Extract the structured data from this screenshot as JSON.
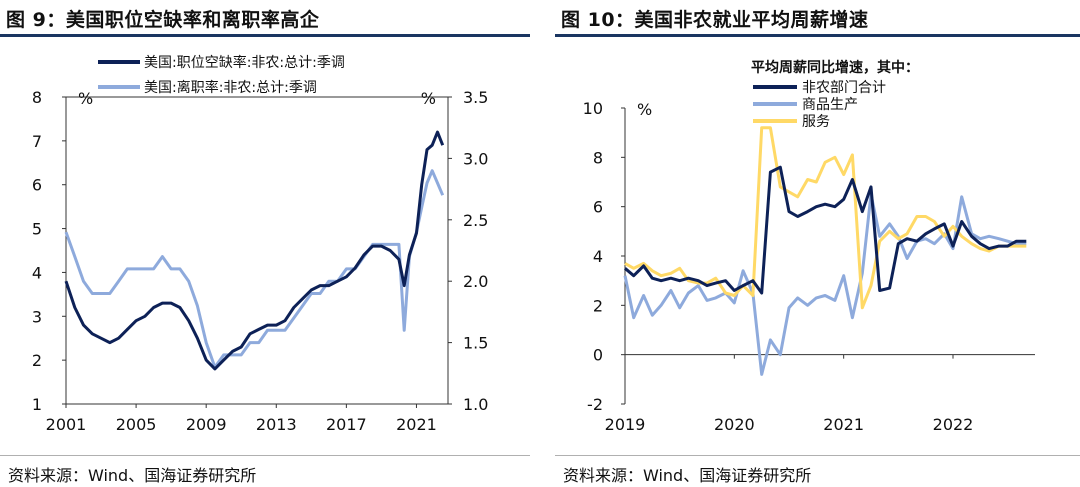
{
  "figures": {
    "left": {
      "title": "图 9：美国职位空缺率和离职率高企",
      "source": "资料来源：Wind、国海证券研究所"
    },
    "right": {
      "title": "图 10：美国非农就业平均周薪增速",
      "source": "资料来源：Wind、国海证券研究所"
    }
  },
  "chart_data": [
    {
      "type": "line",
      "title": "图 9：美国职位空缺率和离职率高企",
      "xlabel": "",
      "ylabel": "%",
      "y2label": "%",
      "xlim": [
        2001.0,
        2022.8
      ],
      "ylim": [
        1,
        8
      ],
      "y2lim": [
        1.0,
        3.5
      ],
      "x_ticks": [
        "2001",
        "2005",
        "2009",
        "2013",
        "2017",
        "2021"
      ],
      "y_ticks": [
        "1",
        "2",
        "3",
        "4",
        "5",
        "6",
        "7",
        "8"
      ],
      "y2_ticks": [
        "1.0",
        "1.5",
        "2.0",
        "2.5",
        "3.0",
        "3.5"
      ],
      "legend_position": "top",
      "colors": {
        "openings": "#0d2157",
        "quits": "#8eaadc"
      },
      "series": [
        {
          "name": "美国:职位空缺率:非农:总计:季调",
          "axis": "left",
          "x": [
            2001.0,
            2001.5,
            2002.0,
            2002.5,
            2003.0,
            2003.5,
            2004.0,
            2004.5,
            2005.0,
            2005.5,
            2006.0,
            2006.5,
            2007.0,
            2007.5,
            2008.0,
            2008.5,
            2009.0,
            2009.5,
            2010.0,
            2010.5,
            2011.0,
            2011.5,
            2012.0,
            2012.5,
            2013.0,
            2013.5,
            2014.0,
            2014.5,
            2015.0,
            2015.5,
            2016.0,
            2016.5,
            2017.0,
            2017.5,
            2018.0,
            2018.5,
            2019.0,
            2019.5,
            2020.0,
            2020.3,
            2020.6,
            2021.0,
            2021.3,
            2021.6,
            2021.9,
            2022.2,
            2022.5
          ],
          "values": [
            3.8,
            3.2,
            2.8,
            2.6,
            2.5,
            2.4,
            2.5,
            2.7,
            2.9,
            3.0,
            3.2,
            3.3,
            3.3,
            3.2,
            2.9,
            2.5,
            2.0,
            1.8,
            2.0,
            2.2,
            2.3,
            2.6,
            2.7,
            2.8,
            2.8,
            2.9,
            3.2,
            3.4,
            3.6,
            3.7,
            3.7,
            3.8,
            3.9,
            4.1,
            4.4,
            4.6,
            4.6,
            4.5,
            4.3,
            3.7,
            4.4,
            4.9,
            6.0,
            6.8,
            6.9,
            7.2,
            6.9
          ]
        },
        {
          "name": "美国:离职率:非农:总计:季调",
          "axis": "right",
          "x": [
            2001.0,
            2001.5,
            2002.0,
            2002.5,
            2003.0,
            2003.5,
            2004.0,
            2004.5,
            2005.0,
            2005.5,
            2006.0,
            2006.5,
            2007.0,
            2007.5,
            2008.0,
            2008.5,
            2009.0,
            2009.5,
            2010.0,
            2010.5,
            2011.0,
            2011.5,
            2012.0,
            2012.5,
            2013.0,
            2013.5,
            2014.0,
            2014.5,
            2015.0,
            2015.5,
            2016.0,
            2016.5,
            2017.0,
            2017.5,
            2018.0,
            2018.5,
            2019.0,
            2019.5,
            2020.0,
            2020.3,
            2020.6,
            2021.0,
            2021.3,
            2021.6,
            2021.9,
            2022.2,
            2022.5
          ],
          "values": [
            2.4,
            2.2,
            2.0,
            1.9,
            1.9,
            1.9,
            2.0,
            2.1,
            2.1,
            2.1,
            2.1,
            2.2,
            2.1,
            2.1,
            2.0,
            1.8,
            1.5,
            1.3,
            1.4,
            1.4,
            1.4,
            1.5,
            1.5,
            1.6,
            1.6,
            1.6,
            1.7,
            1.8,
            1.9,
            1.9,
            2.0,
            2.0,
            2.1,
            2.1,
            2.2,
            2.3,
            2.3,
            2.3,
            2.3,
            1.6,
            2.2,
            2.4,
            2.6,
            2.8,
            2.9,
            2.8,
            2.7
          ]
        }
      ]
    },
    {
      "type": "line",
      "title": "图 10：美国非农就业平均周薪增速",
      "xlabel": "",
      "ylabel": "%",
      "xlim": [
        2019.0,
        2022.75
      ],
      "ylim": [
        -2,
        10
      ],
      "x_ticks": [
        "2019",
        "2020",
        "2021",
        "2022"
      ],
      "y_ticks": [
        "-2",
        "0",
        "2",
        "4",
        "6",
        "8",
        "10"
      ],
      "legend_title": "平均周薪同比增速，其中：",
      "legend_position": "top-left",
      "colors": {
        "nonfarm": "#0d2157",
        "goods": "#8eaadc",
        "services": "#ffd966"
      },
      "series": [
        {
          "name": "非农部门合计",
          "x": [
            2019.0,
            2019.08,
            2019.17,
            2019.25,
            2019.33,
            2019.42,
            2019.5,
            2019.58,
            2019.67,
            2019.75,
            2019.83,
            2019.92,
            2020.0,
            2020.08,
            2020.17,
            2020.25,
            2020.33,
            2020.42,
            2020.5,
            2020.58,
            2020.67,
            2020.75,
            2020.83,
            2020.92,
            2021.0,
            2021.08,
            2021.17,
            2021.25,
            2021.33,
            2021.42,
            2021.5,
            2021.58,
            2021.67,
            2021.75,
            2021.83,
            2021.92,
            2022.0,
            2022.08,
            2022.17,
            2022.25,
            2022.33,
            2022.42,
            2022.5,
            2022.58,
            2022.67
          ],
          "values": [
            3.5,
            3.2,
            3.6,
            3.1,
            3.0,
            3.1,
            3.0,
            3.1,
            3.0,
            2.8,
            2.9,
            3.0,
            2.6,
            2.8,
            3.0,
            2.5,
            7.4,
            7.6,
            5.8,
            5.6,
            5.8,
            6.0,
            6.1,
            6.0,
            6.3,
            7.1,
            5.8,
            6.8,
            2.6,
            2.7,
            4.5,
            4.7,
            4.6,
            4.9,
            5.1,
            5.3,
            4.4,
            5.4,
            4.8,
            4.5,
            4.3,
            4.4,
            4.4,
            4.6,
            4.6
          ]
        },
        {
          "name": "商品生产",
          "x": [
            2019.0,
            2019.08,
            2019.17,
            2019.25,
            2019.33,
            2019.42,
            2019.5,
            2019.58,
            2019.67,
            2019.75,
            2019.83,
            2019.92,
            2020.0,
            2020.08,
            2020.17,
            2020.25,
            2020.33,
            2020.42,
            2020.5,
            2020.58,
            2020.67,
            2020.75,
            2020.83,
            2020.92,
            2021.0,
            2021.08,
            2021.17,
            2021.25,
            2021.33,
            2021.42,
            2021.5,
            2021.58,
            2021.67,
            2021.75,
            2021.83,
            2021.92,
            2022.0,
            2022.08,
            2022.17,
            2022.25,
            2022.33,
            2022.42,
            2022.5,
            2022.58,
            2022.67
          ],
          "values": [
            3.2,
            1.5,
            2.4,
            1.6,
            2.0,
            2.6,
            1.9,
            2.5,
            2.8,
            2.2,
            2.3,
            2.5,
            2.1,
            3.4,
            2.5,
            -0.8,
            0.6,
            0.0,
            1.9,
            2.3,
            2.0,
            2.3,
            2.4,
            2.2,
            3.2,
            1.5,
            3.3,
            6.5,
            4.8,
            5.3,
            4.8,
            3.9,
            4.6,
            4.7,
            4.5,
            4.9,
            4.3,
            6.4,
            4.9,
            4.7,
            4.8,
            4.7,
            4.6,
            4.5,
            4.5
          ]
        },
        {
          "name": "服务",
          "x": [
            2019.0,
            2019.08,
            2019.17,
            2019.25,
            2019.33,
            2019.42,
            2019.5,
            2019.58,
            2019.67,
            2019.75,
            2019.83,
            2019.92,
            2020.0,
            2020.08,
            2020.17,
            2020.25,
            2020.33,
            2020.42,
            2020.5,
            2020.58,
            2020.67,
            2020.75,
            2020.83,
            2020.92,
            2021.0,
            2021.08,
            2021.17,
            2021.25,
            2021.33,
            2021.42,
            2021.5,
            2021.58,
            2021.67,
            2021.75,
            2021.83,
            2021.92,
            2022.0,
            2022.08,
            2022.17,
            2022.25,
            2022.33,
            2022.42,
            2022.5,
            2022.58,
            2022.67
          ],
          "values": [
            3.7,
            3.5,
            3.7,
            3.4,
            3.2,
            3.3,
            3.5,
            3.0,
            2.9,
            2.9,
            3.1,
            2.5,
            2.4,
            2.8,
            2.4,
            9.2,
            9.2,
            6.8,
            6.6,
            6.4,
            7.1,
            7.0,
            7.8,
            8.0,
            7.3,
            8.1,
            1.9,
            2.8,
            4.6,
            5.0,
            4.7,
            4.9,
            5.6,
            5.6,
            5.4,
            4.8,
            5.2,
            4.8,
            4.5,
            4.3,
            4.2,
            4.4,
            4.4,
            4.4,
            4.4
          ]
        }
      ]
    }
  ]
}
